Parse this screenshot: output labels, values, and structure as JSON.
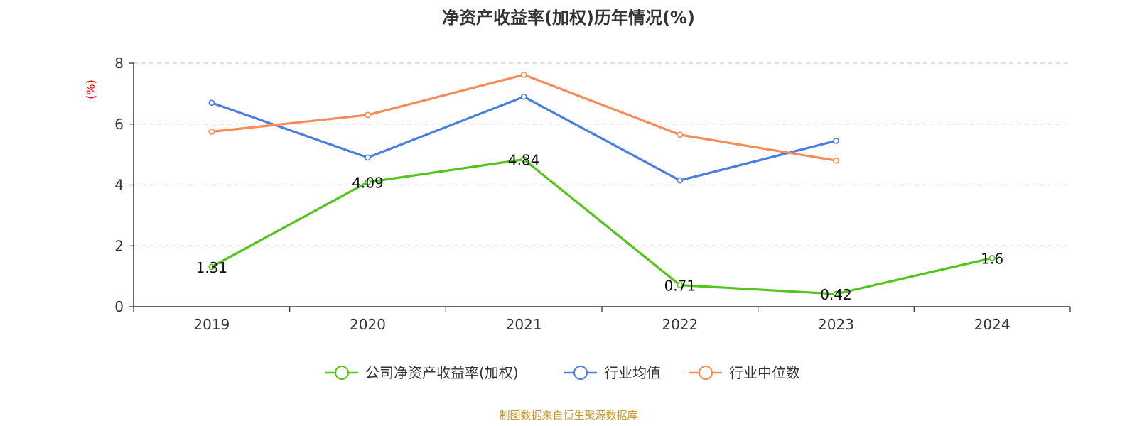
{
  "chart_data": {
    "type": "line",
    "title": "净资产收益率(加权)历年情况(%)",
    "ylabel": "(%)",
    "xlabel": "",
    "ylim": [
      0,
      8
    ],
    "yticks": [
      0,
      2,
      4,
      6,
      8
    ],
    "categories": [
      "2019",
      "2020",
      "2021",
      "2022",
      "2023",
      "2024"
    ],
    "grid": true,
    "legend_position": "bottom",
    "series": [
      {
        "name": "公司净资产收益率(加权)",
        "color": "#52c41a",
        "values": [
          1.31,
          4.09,
          4.84,
          0.71,
          0.42,
          1.6
        ],
        "labels": [
          "1.31",
          "4.09",
          "4.84",
          "0.71",
          "0.42",
          "1.6"
        ],
        "show_labels": true
      },
      {
        "name": "行业均值",
        "color": "#4a7ee0",
        "values": [
          6.7,
          4.9,
          6.9,
          4.15,
          5.45,
          null
        ],
        "show_labels": false
      },
      {
        "name": "行业中位数",
        "color": "#f78b55",
        "values": [
          5.75,
          6.3,
          7.62,
          5.65,
          4.8,
          null
        ],
        "show_labels": false
      }
    ],
    "source": "制图数据来自恒生聚源数据库",
    "unit_color": "#ff0000"
  }
}
